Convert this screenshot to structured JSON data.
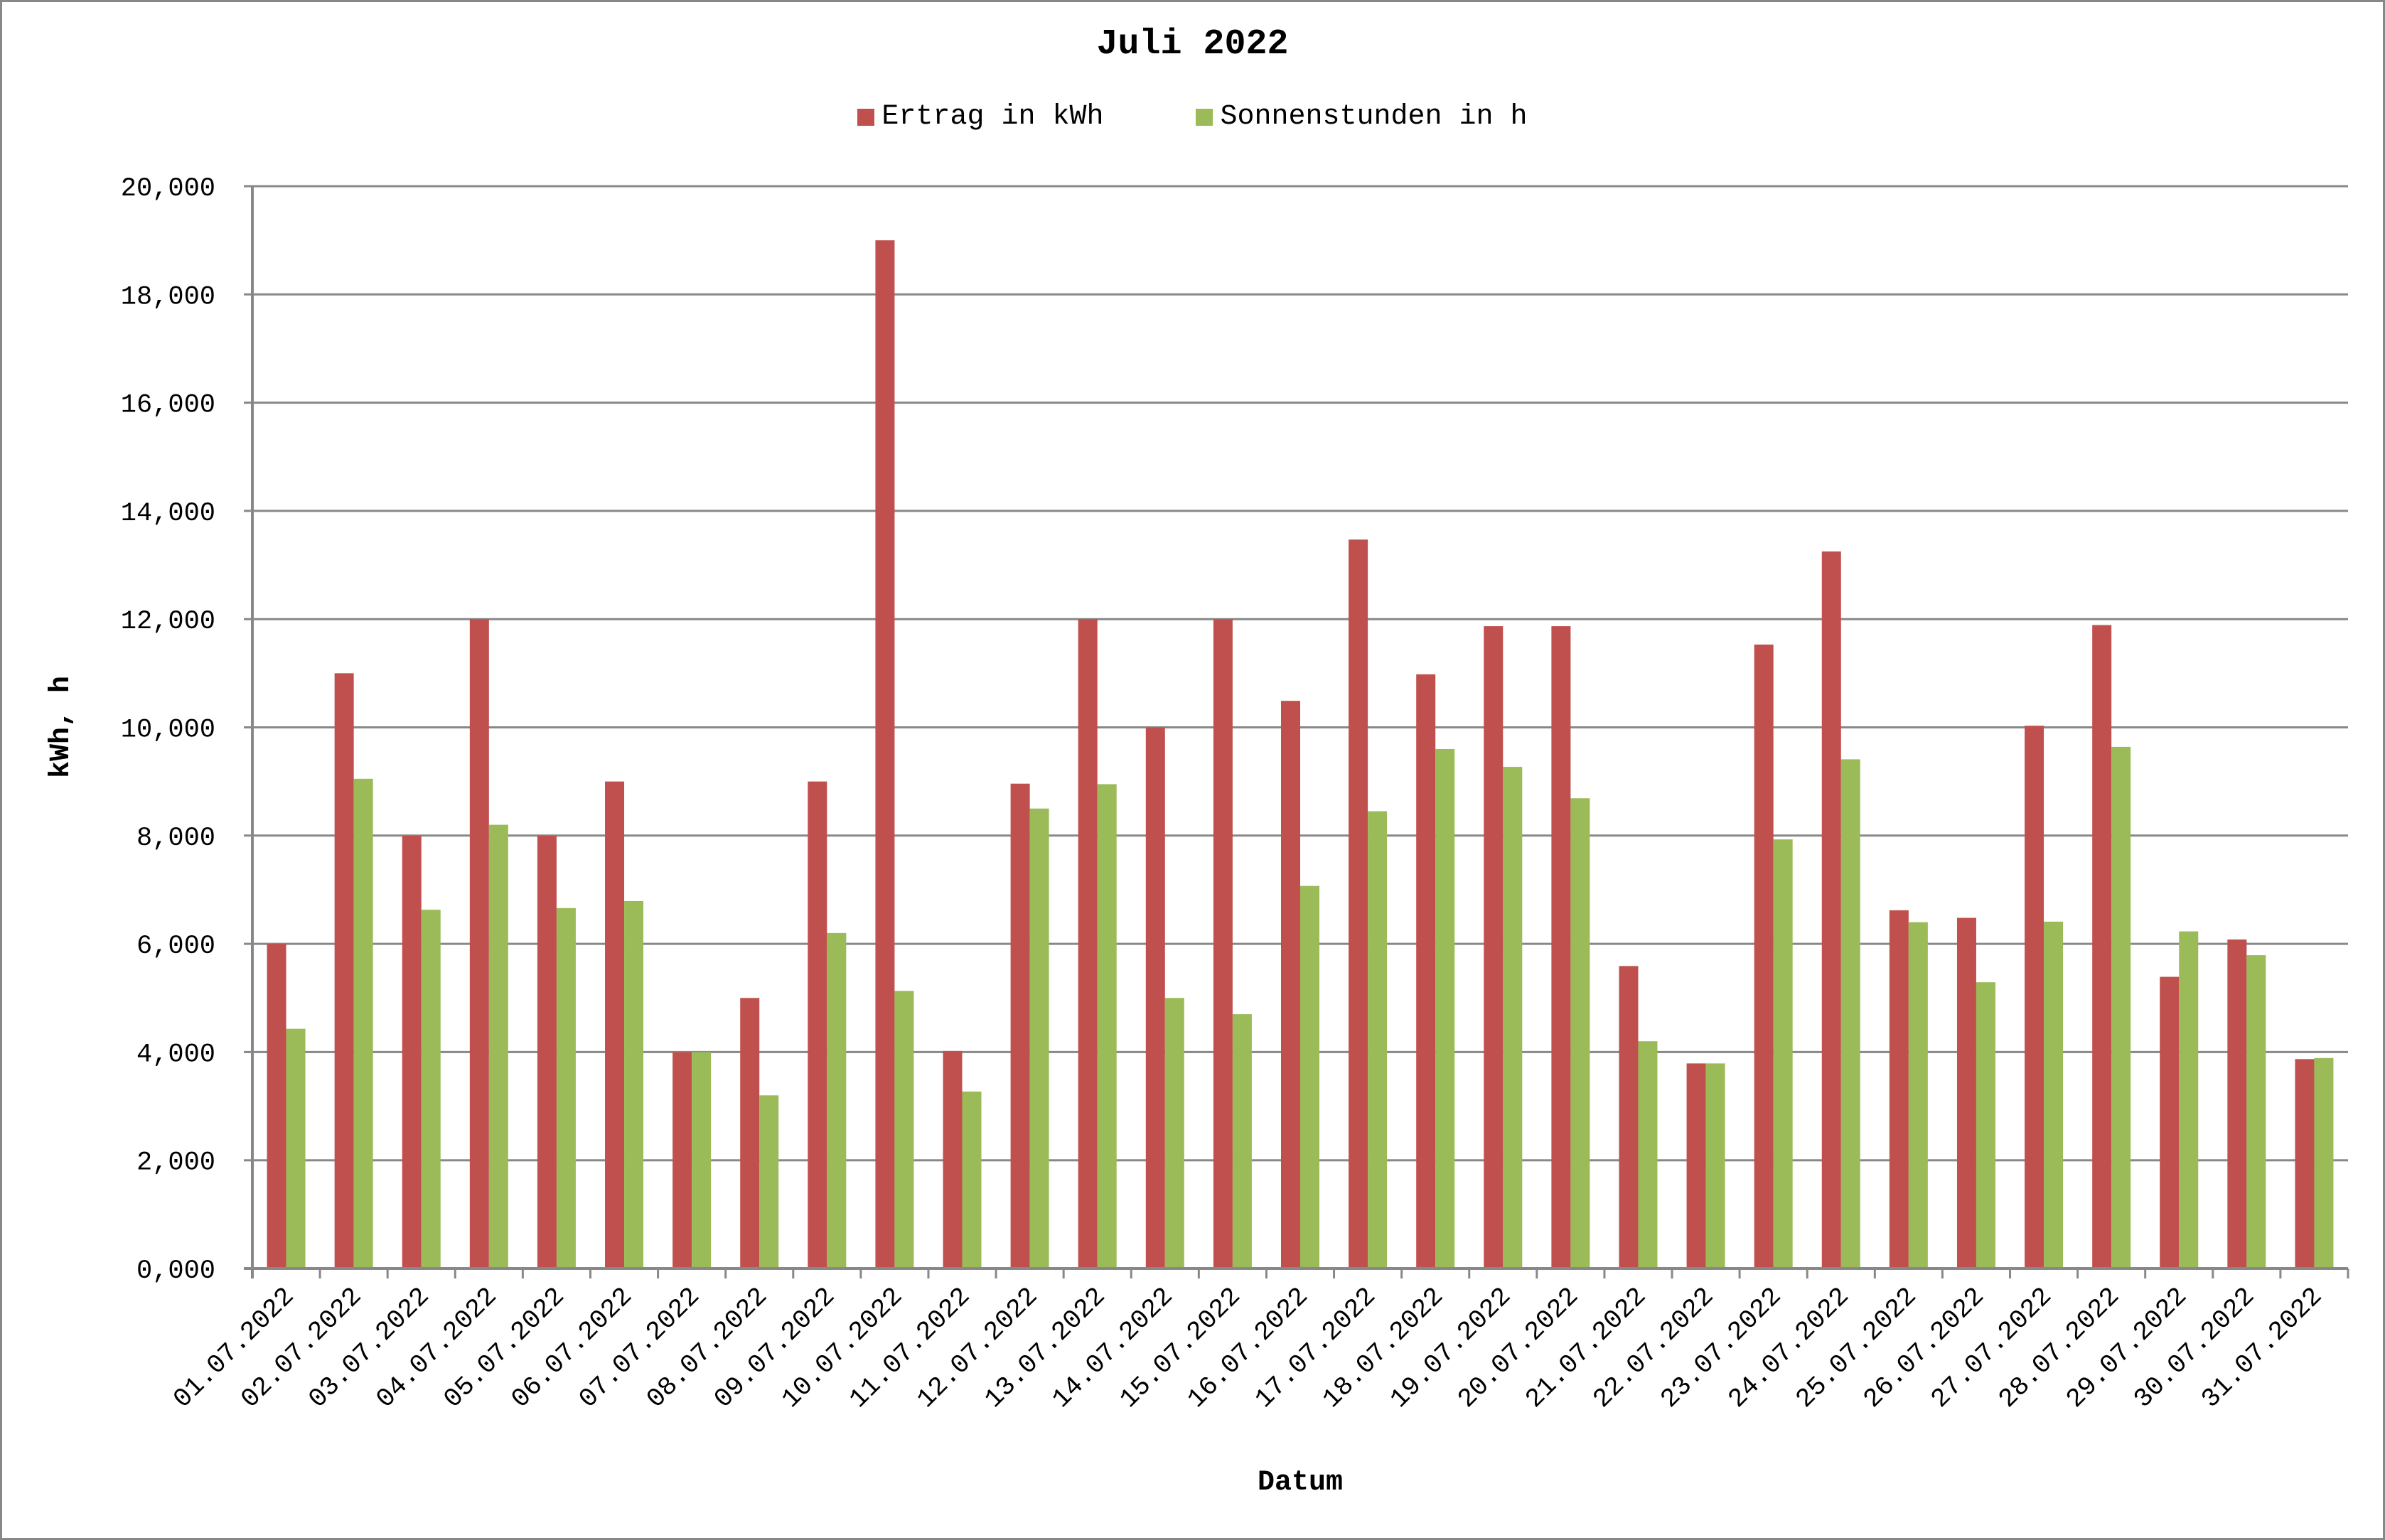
{
  "chart": {
    "title": "Juli 2022",
    "xlabel": "Datum",
    "ylabel": "kWh, h",
    "y_ticks": [
      "0,000",
      "2,000",
      "4,000",
      "6,000",
      "8,000",
      "10,000",
      "12,000",
      "14,000",
      "16,000",
      "18,000",
      "20,000"
    ],
    "legend": [
      {
        "label": "Ertrag in kWh",
        "color": "#C0504D"
      },
      {
        "label": "Sonnenstunden in h",
        "color": "#9BBB59"
      }
    ]
  },
  "chart_data": {
    "type": "bar",
    "title": "Juli 2022",
    "xlabel": "Datum",
    "ylabel": "kWh, h",
    "ylim": [
      0,
      20
    ],
    "grid": true,
    "legend_position": "top",
    "categories": [
      "01.07.2022",
      "02.07.2022",
      "03.07.2022",
      "04.07.2022",
      "05.07.2022",
      "06.07.2022",
      "07.07.2022",
      "08.07.2022",
      "09.07.2022",
      "10.07.2022",
      "11.07.2022",
      "12.07.2022",
      "13.07.2022",
      "14.07.2022",
      "15.07.2022",
      "16.07.2022",
      "17.07.2022",
      "18.07.2022",
      "19.07.2022",
      "20.07.2022",
      "21.07.2022",
      "22.07.2022",
      "23.07.2022",
      "24.07.2022",
      "25.07.2022",
      "26.07.2022",
      "27.07.2022",
      "28.07.2022",
      "29.07.2022",
      "30.07.2022",
      "31.07.2022"
    ],
    "series": [
      {
        "name": "Ertrag in kWh",
        "color": "#C0504D",
        "values": [
          6.0,
          11.0,
          8.0,
          12.0,
          8.0,
          9.0,
          4.0,
          5.0,
          9.0,
          19.0,
          4.02,
          8.96,
          12.0,
          10.0,
          12.0,
          10.49,
          13.47,
          10.98,
          11.87,
          11.87,
          5.59,
          3.79,
          11.53,
          13.25,
          6.62,
          6.48,
          10.03,
          11.89,
          5.39,
          6.08,
          3.87
        ]
      },
      {
        "name": "Sonnenstunden in h",
        "color": "#9BBB59",
        "values": [
          4.43,
          9.05,
          6.63,
          8.2,
          6.66,
          6.79,
          4.0,
          3.2,
          6.2,
          5.13,
          3.27,
          8.5,
          8.95,
          5.0,
          4.7,
          7.07,
          8.45,
          9.6,
          9.27,
          8.69,
          4.2,
          3.79,
          7.93,
          9.41,
          6.4,
          5.29,
          6.41,
          9.64,
          6.23,
          5.79,
          3.89
        ]
      }
    ]
  }
}
